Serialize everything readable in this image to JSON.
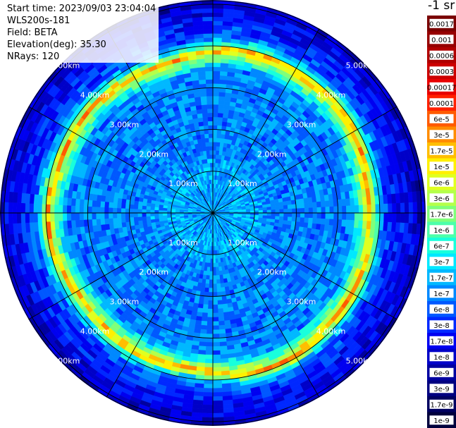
{
  "info": {
    "start_time": "Start time: 2023/09/03 23:04:04",
    "site": "WLS200s-181",
    "field": "Field: BETA",
    "elevation": "Elevation(deg): 35.30",
    "nrays": "NRays: 120"
  },
  "colorbar": {
    "title": "-1 sr",
    "labels": [
      "0.0017",
      "0.001",
      "0.0006",
      "0.0003",
      "0.00017",
      "0.0001",
      "6e-5",
      "3e-5",
      "1.7e-5",
      "1e-5",
      "6e-6",
      "3e-6",
      "1.7e-6",
      "1e-6",
      "6e-7",
      "3e-7",
      "1.7e-7",
      "1e-7",
      "6e-8",
      "3e-8",
      "1.7e-8",
      "1e-8",
      "6e-9",
      "3e-9",
      "1.7e-9",
      "1e-9"
    ],
    "colors": [
      "#7a0000",
      "#960000",
      "#b00000",
      "#cc0000",
      "#e80000",
      "#ff2000",
      "#ff5a00",
      "#ff8c00",
      "#ffbe00",
      "#fff000",
      "#e0ff20",
      "#b4ff4a",
      "#80ff7a",
      "#4cffaa",
      "#18ffdc",
      "#00e8ff",
      "#00b8ff",
      "#0088ff",
      "#0058ff",
      "#0028ff",
      "#0000f0",
      "#0000c8",
      "#0000a0",
      "#000080",
      "#000060",
      "#00003c"
    ]
  },
  "chart_data": {
    "type": "heatmap",
    "projection": "polar-ppi",
    "nrays": 120,
    "range_rings_km": [
      1.0,
      2.0,
      3.0,
      4.0,
      5.0
    ],
    "ring_labels": [
      "1.00km",
      "2.00km",
      "3.00km",
      "4.00km",
      "5.00km"
    ],
    "max_range_km": 5.1,
    "spokes_deg": [
      0,
      30,
      60,
      90,
      120,
      150,
      180,
      210,
      240,
      270,
      300,
      330
    ],
    "color_scale": "log",
    "value_range": [
      1e-09,
      0.0017
    ],
    "profile": {
      "range_km": [
        0.0,
        0.3,
        0.6,
        1.0,
        1.5,
        2.0,
        2.5,
        3.0,
        3.4,
        3.7,
        3.85,
        4.0,
        4.2,
        4.5,
        5.0,
        5.1
      ],
      "beta": [
        1.7e-07,
        1.3e-07,
        1.6e-07,
        1.7e-07,
        1e-07,
        1e-07,
        9e-08,
        1e-07,
        1e-07,
        1.7e-06,
        2.5e-05,
        6e-07,
        6e-08,
        3e-08,
        1.2e-08,
        1e-08
      ]
    },
    "grid": true
  }
}
